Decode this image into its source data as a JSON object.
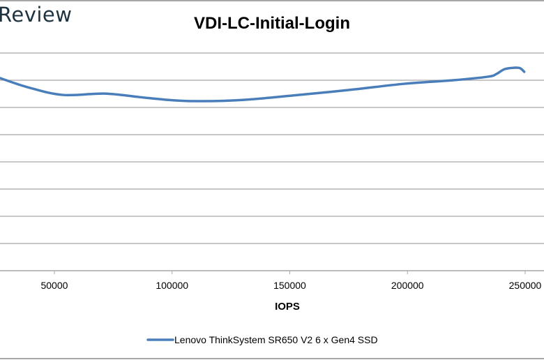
{
  "logo_text": "Review",
  "chart_data": {
    "type": "line",
    "title": "VDI-LC-Initial-Login",
    "xlabel": "IOPS",
    "ylabel": "",
    "xlim": [
      26900,
      258000
    ],
    "ylim": [
      0,
      8
    ],
    "y_units_note": "",
    "x_ticks": [
      50000,
      100000,
      150000,
      200000,
      250000
    ],
    "x_tick_labels": [
      "50000",
      "100000",
      "150000",
      "200000",
      "250000"
    ],
    "y_gridlines": [
      1,
      2,
      3,
      4,
      5,
      6,
      7,
      8
    ],
    "grid": true,
    "legend_position": "bottom",
    "series": [
      {
        "name": "Lenovo ThinkSystem SR650 V2 6 x Gen4 SSD",
        "color": "#4a7ebb",
        "x": [
          26900,
          38770,
          53560,
          71330,
          86150,
          100900,
          112800,
          130600,
          151300,
          175000,
          198700,
          219400,
          234200,
          237800,
          241300,
          245500,
          247900,
          249600
        ],
        "y": [
          7.08,
          6.74,
          6.46,
          6.51,
          6.38,
          6.26,
          6.23,
          6.28,
          6.44,
          6.64,
          6.87,
          7.0,
          7.13,
          7.23,
          7.41,
          7.46,
          7.44,
          7.31
        ]
      }
    ]
  }
}
